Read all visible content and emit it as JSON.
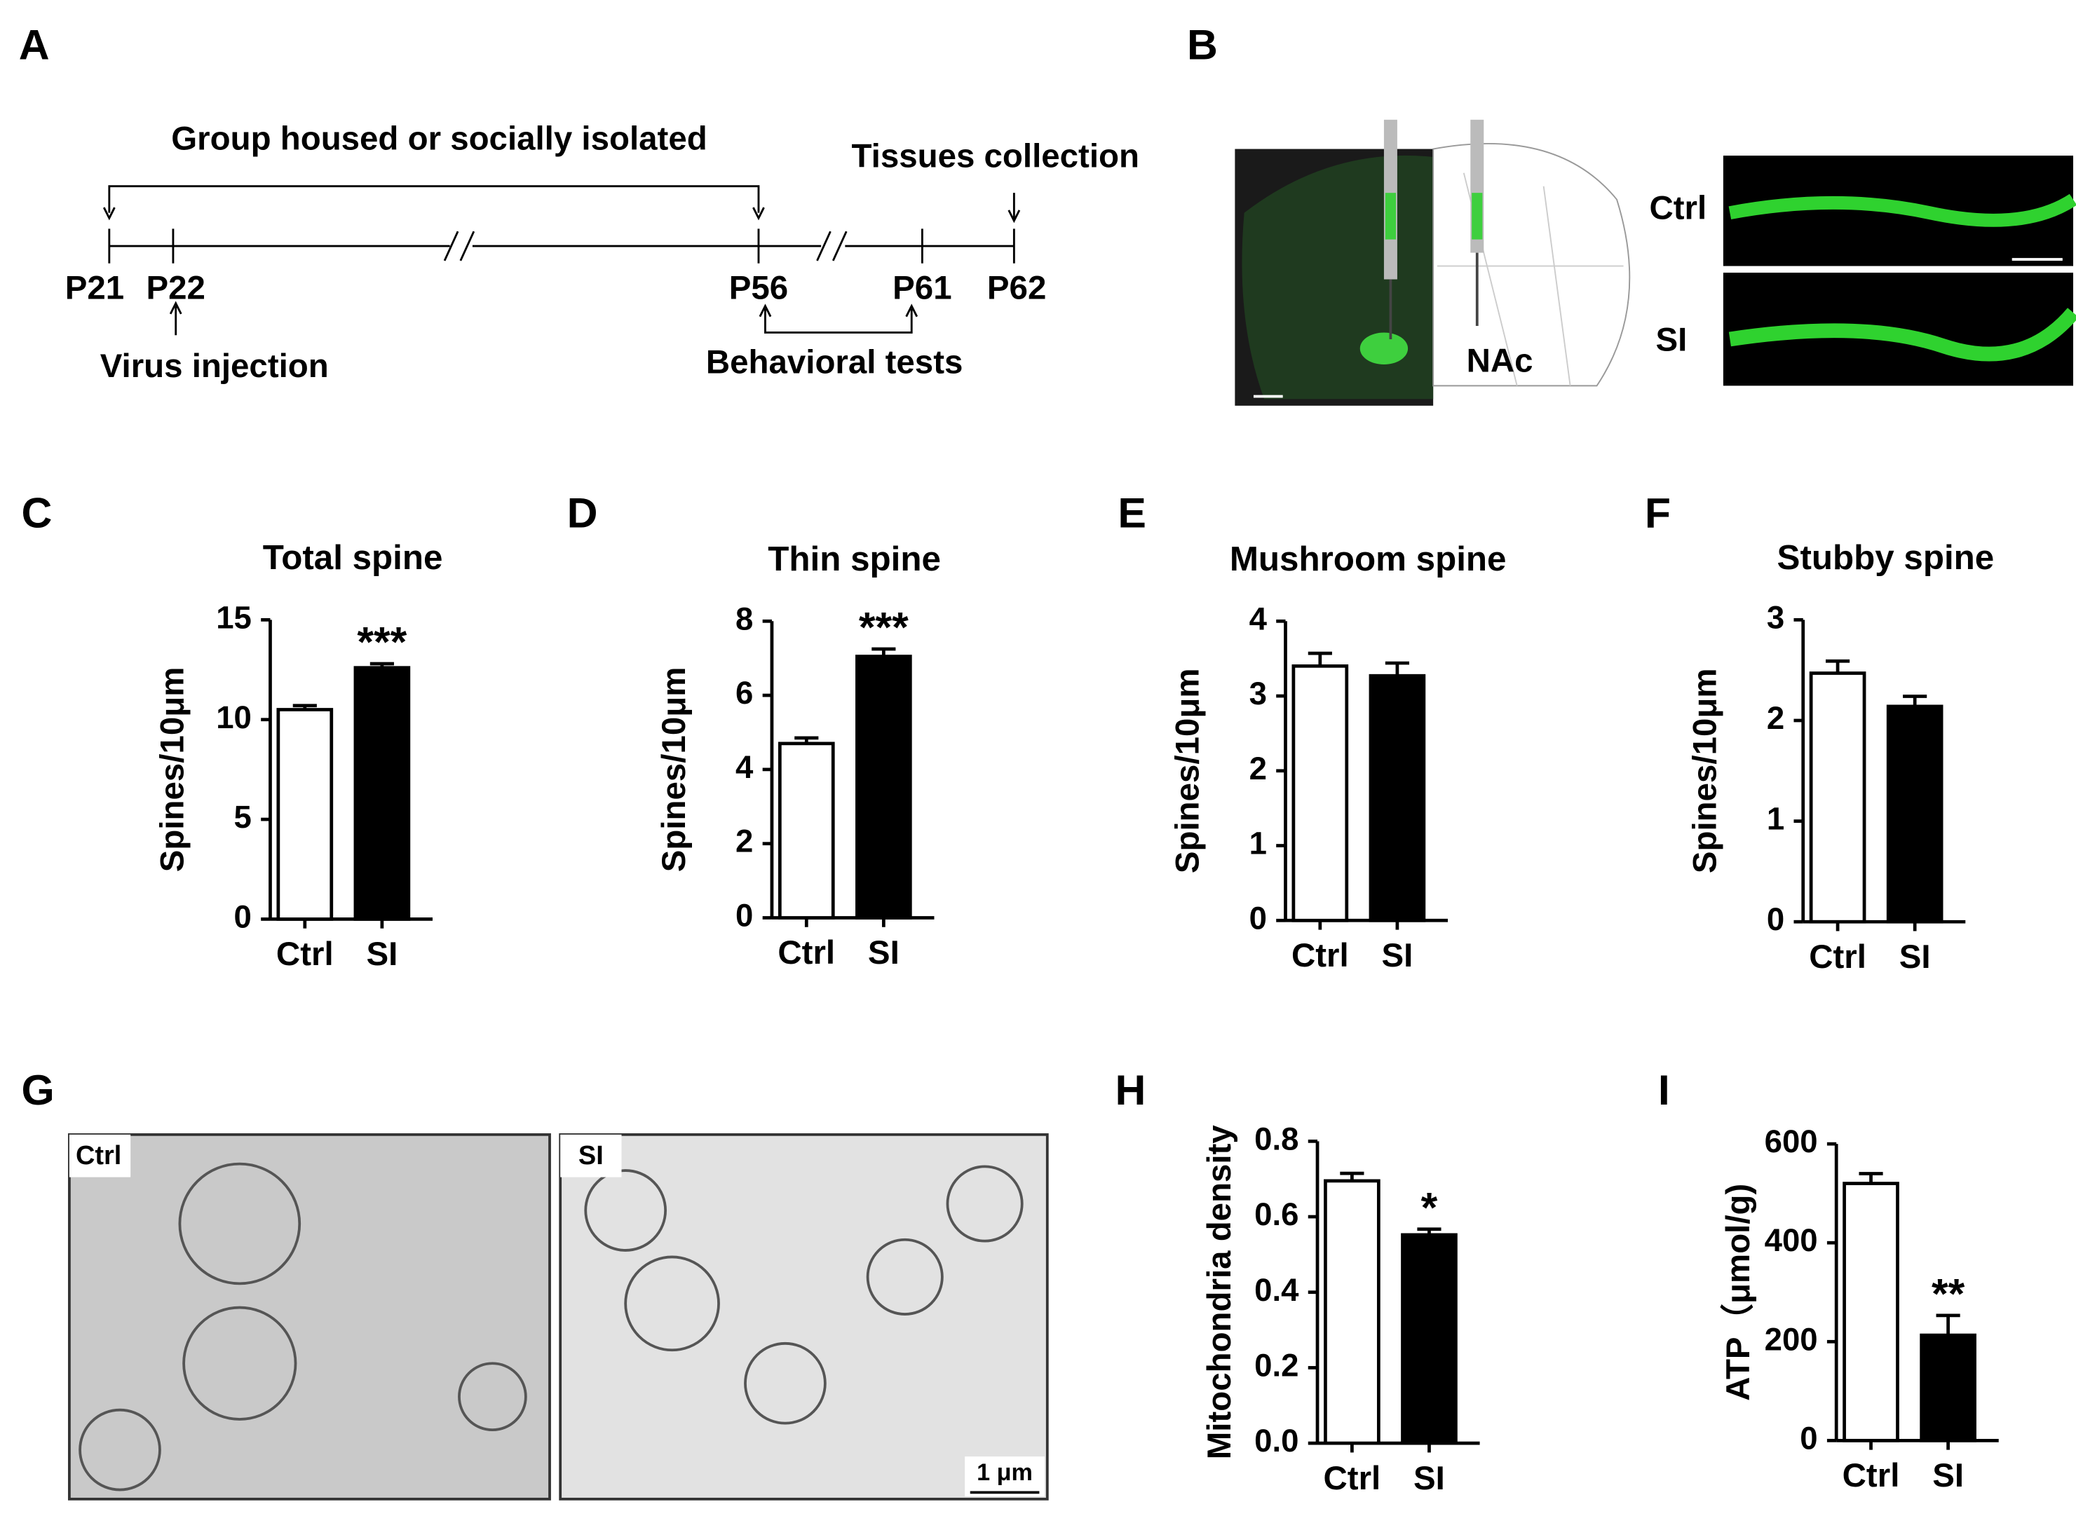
{
  "panel_labels": [
    "A",
    "B",
    "C",
    "D",
    "E",
    "F",
    "G",
    "H",
    "I"
  ],
  "timeline": {
    "period": "Group housed or socially isolated",
    "collection": "Tissues collection",
    "days": [
      "P21",
      "P22",
      "P56",
      "P61",
      "P62"
    ],
    "injection": "Virus injection",
    "tests": "Behavioral tests"
  },
  "imaging": {
    "ctrl": "Ctrl",
    "si": "SI",
    "region": "NAc"
  },
  "em": {
    "ctrl": "Ctrl",
    "si": "SI",
    "scale": "1 μm"
  },
  "chart_data": [
    {
      "type": "bar",
      "title": "Total spine",
      "ylabel": "Spines/10μm",
      "categories": [
        "Ctrl",
        "SI"
      ],
      "values": [
        10.5,
        12.6
      ],
      "errors": [
        0.2,
        0.2
      ],
      "colors": [
        "#ffffff",
        "#000000"
      ],
      "ylim": [
        0,
        15
      ],
      "yticks": [
        0,
        5,
        10,
        15
      ],
      "annotation": "***"
    },
    {
      "type": "bar",
      "title": "Thin spine",
      "ylabel": "Spines/10μm",
      "categories": [
        "Ctrl",
        "SI"
      ],
      "values": [
        4.7,
        7.05
      ],
      "errors": [
        0.15,
        0.2
      ],
      "colors": [
        "#ffffff",
        "#000000"
      ],
      "ylim": [
        0,
        8
      ],
      "yticks": [
        0,
        2,
        4,
        6,
        8
      ],
      "annotation": "***"
    },
    {
      "type": "bar",
      "title": "Mushroom spine",
      "ylabel": "Spines/10μm",
      "categories": [
        "Ctrl",
        "SI"
      ],
      "values": [
        3.4,
        3.27
      ],
      "errors": [
        0.17,
        0.17
      ],
      "colors": [
        "#ffffff",
        "#000000"
      ],
      "ylim": [
        0,
        4
      ],
      "yticks": [
        0,
        1,
        2,
        3,
        4
      ]
    },
    {
      "type": "bar",
      "title": "Stubby spine",
      "ylabel": "Spines/10μm",
      "categories": [
        "Ctrl",
        "SI"
      ],
      "values": [
        2.47,
        2.14
      ],
      "errors": [
        0.12,
        0.1
      ],
      "colors": [
        "#ffffff",
        "#000000"
      ],
      "ylim": [
        0,
        3
      ],
      "yticks": [
        0,
        1,
        2,
        3
      ]
    },
    {
      "type": "bar",
      "ylabel": "Mitochondria density",
      "categories": [
        "Ctrl",
        "SI"
      ],
      "values": [
        0.695,
        0.552
      ],
      "errors": [
        0.02,
        0.015
      ],
      "colors": [
        "#ffffff",
        "#000000"
      ],
      "ylim": [
        0,
        0.8
      ],
      "yticks": [
        {
          "value": 0,
          "label": "0.0"
        },
        0.2,
        0.4,
        0.6,
        0.8
      ],
      "annotation": "*"
    },
    {
      "type": "bar",
      "ylabel": "ATP（μmol/g)",
      "categories": [
        "Ctrl",
        "SI"
      ],
      "values": [
        520,
        213
      ],
      "errors": [
        20,
        40
      ],
      "colors": [
        "#ffffff",
        "#000000"
      ],
      "ylim": [
        0,
        600
      ],
      "yticks": [
        0,
        200,
        400,
        600
      ],
      "annotation": "**"
    }
  ]
}
